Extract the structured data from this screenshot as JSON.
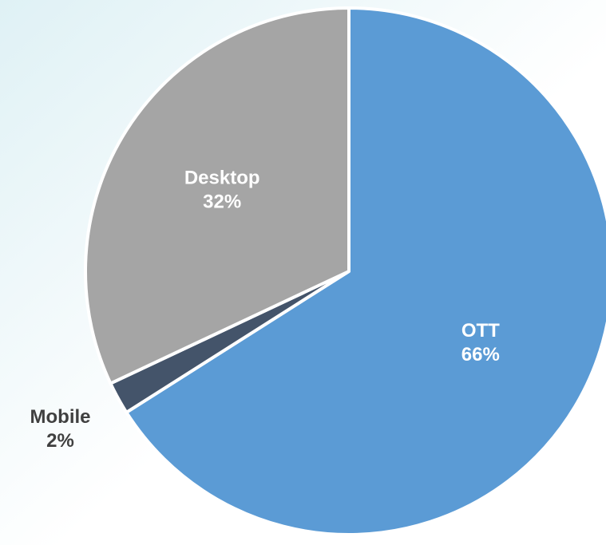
{
  "chart_data": {
    "type": "pie",
    "categories": [
      "OTT",
      "Mobile",
      "Desktop"
    ],
    "values": [
      66,
      2,
      32
    ],
    "value_labels": [
      "66%",
      "2%",
      "32%"
    ],
    "colors": [
      "#5b9bd5",
      "#44546a",
      "#a5a5a5"
    ]
  }
}
